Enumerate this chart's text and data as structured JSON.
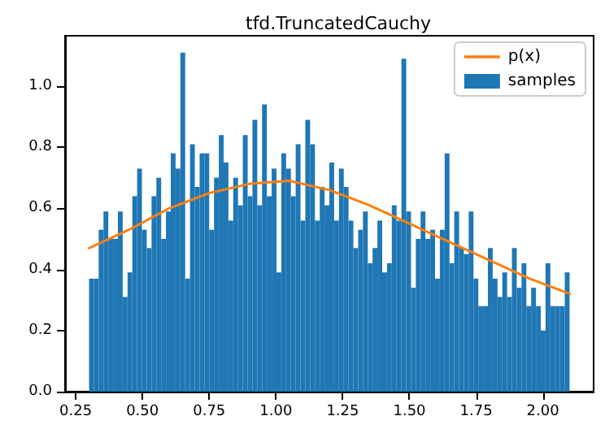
{
  "chart_data": {
    "type": "histogram",
    "title": "tfd.TruncatedCauchy",
    "series": [
      {
        "name": "p(x)",
        "type": "line",
        "color": "#ff7f0e",
        "x": [
          0.3,
          0.45,
          0.6,
          0.75,
          0.9,
          1.05,
          1.2,
          1.35,
          1.5,
          1.65,
          1.8,
          1.95,
          2.1
        ],
        "values": [
          0.47,
          0.53,
          0.6,
          0.65,
          0.68,
          0.69,
          0.66,
          0.61,
          0.55,
          0.49,
          0.43,
          0.37,
          0.32
        ]
      },
      {
        "name": "samples",
        "color": "#1f77b4",
        "bins": [
          0.3,
          0.318,
          0.336,
          0.354,
          0.372,
          0.39,
          0.408,
          0.426,
          0.444,
          0.462,
          0.48,
          0.498,
          0.516,
          0.534,
          0.552,
          0.57,
          0.588,
          0.606,
          0.624,
          0.642,
          0.66,
          0.678,
          0.696,
          0.714,
          0.732,
          0.75,
          0.768,
          0.786,
          0.804,
          0.822,
          0.84,
          0.858,
          0.876,
          0.894,
          0.912,
          0.93,
          0.948,
          0.966,
          0.984,
          1.002,
          1.02,
          1.038,
          1.056,
          1.074,
          1.092,
          1.11,
          1.128,
          1.146,
          1.164,
          1.182,
          1.2,
          1.218,
          1.236,
          1.254,
          1.272,
          1.29,
          1.308,
          1.326,
          1.344,
          1.362,
          1.38,
          1.398,
          1.416,
          1.434,
          1.452,
          1.47,
          1.488,
          1.506,
          1.524,
          1.542,
          1.56,
          1.578,
          1.596,
          1.614,
          1.632,
          1.65,
          1.668,
          1.686,
          1.704,
          1.722,
          1.74,
          1.758,
          1.776,
          1.794,
          1.812,
          1.83,
          1.848,
          1.866,
          1.884,
          1.902,
          1.92,
          1.938,
          1.956,
          1.974,
          1.992,
          2.01,
          2.028,
          2.046,
          2.064,
          2.082,
          2.1
        ],
        "values": [
          0.37,
          0.37,
          0.53,
          0.59,
          0.5,
          0.5,
          0.59,
          0.31,
          0.39,
          0.64,
          0.73,
          0.53,
          0.47,
          0.64,
          0.7,
          0.5,
          0.59,
          0.78,
          0.73,
          1.11,
          0.37,
          0.81,
          0.67,
          0.78,
          0.78,
          0.53,
          0.7,
          0.84,
          0.75,
          0.56,
          0.7,
          0.61,
          0.84,
          0.64,
          0.89,
          0.61,
          0.94,
          0.64,
          0.73,
          0.39,
          0.78,
          0.73,
          0.64,
          0.81,
          0.56,
          0.89,
          0.81,
          0.56,
          0.67,
          0.61,
          0.75,
          0.56,
          0.73,
          0.67,
          0.56,
          0.47,
          0.53,
          0.59,
          0.42,
          0.47,
          0.56,
          0.39,
          0.42,
          0.61,
          0.56,
          1.09,
          0.59,
          0.34,
          0.5,
          0.59,
          0.5,
          0.53,
          0.37,
          0.53,
          0.78,
          0.42,
          0.59,
          0.47,
          0.45,
          0.59,
          0.37,
          0.28,
          0.28,
          0.47,
          0.37,
          0.31,
          0.39,
          0.31,
          0.47,
          0.34,
          0.42,
          0.28,
          0.34,
          0.28,
          0.2,
          0.42,
          0.28,
          0.28,
          0.28,
          0.39
        ]
      }
    ],
    "xlim": [
      0.21,
      2.19
    ],
    "xticks": [
      {
        "value": 0.25,
        "label": "0.25"
      },
      {
        "value": 0.5,
        "label": "0.50"
      },
      {
        "value": 0.75,
        "label": "0.75"
      },
      {
        "value": 1.0,
        "label": "1.00"
      },
      {
        "value": 1.25,
        "label": "1.25"
      },
      {
        "value": 1.5,
        "label": "1.50"
      },
      {
        "value": 1.75,
        "label": "1.75"
      },
      {
        "value": 2.0,
        "label": "2.00"
      }
    ],
    "ylim": [
      0,
      1.165
    ],
    "yticks": [
      {
        "value": 0,
        "label": "0.0"
      },
      {
        "value": 0.2,
        "label": "0.2"
      },
      {
        "value": 0.4,
        "label": "0.4"
      },
      {
        "value": 0.6,
        "label": "0.6"
      },
      {
        "value": 0.8,
        "label": "0.8"
      },
      {
        "value": 1.0,
        "label": "1.0"
      }
    ],
    "grid": false,
    "legend": "top right"
  }
}
